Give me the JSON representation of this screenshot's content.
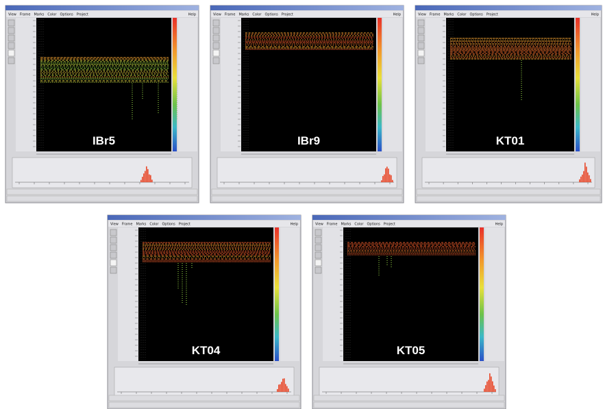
{
  "menu": [
    "View",
    "Frame",
    "Marks",
    "Color",
    "Options",
    "Project"
  ],
  "help": "Help",
  "panels": [
    {
      "label": "IBr5"
    },
    {
      "label": "IBr9"
    },
    {
      "label": "KT01"
    },
    {
      "label": "KT04"
    },
    {
      "label": "KT05"
    }
  ]
}
